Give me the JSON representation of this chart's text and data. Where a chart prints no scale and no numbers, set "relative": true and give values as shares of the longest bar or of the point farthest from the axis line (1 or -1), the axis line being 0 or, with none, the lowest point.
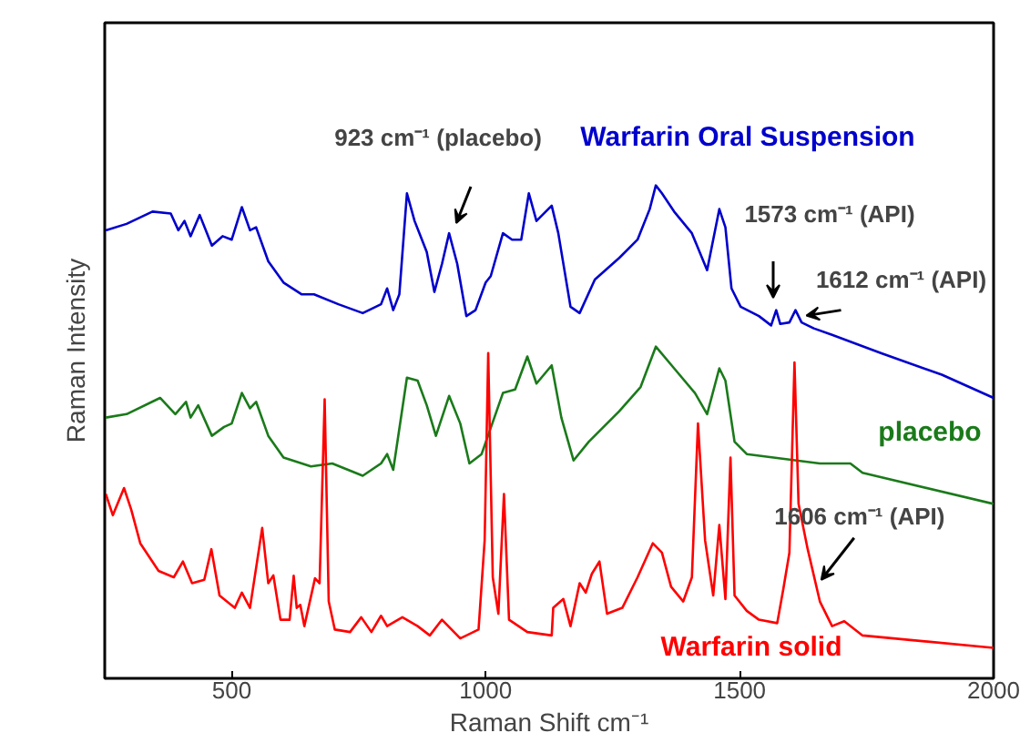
{
  "chart_data": {
    "type": "line",
    "xlabel": "Raman Shift cm⁻¹",
    "ylabel": "Raman Intensity",
    "relative": true,
    "xlim": [
      250,
      2000
    ],
    "xticks": [
      500,
      1000,
      1500,
      2000
    ],
    "annotations": [
      "923 cm⁻¹ (placebo)",
      "1573 cm⁻¹ (API)",
      {
        "text": "1612 cm⁻¹ (API)",
        "x": 1610,
        "y": 0.747
      },
      {
        "text": "1606 cm⁻¹ (API)",
        "x": 1650,
        "y": 0.2
      }
    ],
    "series": [
      {
        "name": "Warfarin Oral Suspension",
        "color": "#0000cc",
        "x": [
          252,
          293,
          344,
          380,
          395,
          407,
          419,
          437,
          461,
          482,
          500,
          520,
          536,
          548,
          572,
          602,
          638,
          662,
          710,
          758,
          794,
          806,
          818,
          830,
          845,
          860,
          884,
          899,
          914,
          928,
          944,
          962,
          980,
          1000,
          1010,
          1034,
          1052,
          1070,
          1085,
          1100,
          1130,
          1143,
          1167,
          1185,
          1215,
          1263,
          1299,
          1323,
          1335,
          1347,
          1371,
          1406,
          1436,
          1460,
          1472,
          1484,
          1502,
          1538,
          1562,
          1572,
          1580,
          1598,
          1610,
          1622,
          1646,
          1682,
          1778,
          1898,
          2000
        ],
        "values": [
          0.909,
          0.922,
          0.947,
          0.943,
          0.909,
          0.928,
          0.897,
          0.94,
          0.878,
          0.897,
          0.89,
          0.956,
          0.909,
          0.915,
          0.846,
          0.803,
          0.779,
          0.779,
          0.759,
          0.741,
          0.759,
          0.791,
          0.747,
          0.779,
          0.984,
          0.928,
          0.865,
          0.784,
          0.841,
          0.903,
          0.841,
          0.735,
          0.747,
          0.803,
          0.816,
          0.903,
          0.89,
          0.89,
          0.984,
          0.928,
          0.959,
          0.903,
          0.754,
          0.741,
          0.809,
          0.853,
          0.89,
          0.952,
          1.0,
          0.984,
          0.947,
          0.903,
          0.828,
          0.952,
          0.915,
          0.791,
          0.754,
          0.735,
          0.716,
          0.747,
          0.719,
          0.722,
          0.747,
          0.722,
          0.71,
          0.697,
          0.66,
          0.616,
          0.569
        ]
      },
      {
        "name": "placebo",
        "color": "#1a7a1a",
        "x": [
          252,
          293,
          359,
          389,
          410,
          419,
          434,
          461,
          485,
          500,
          520,
          536,
          548,
          572,
          602,
          656,
          698,
          758,
          794,
          806,
          818,
          845,
          866,
          884,
          902,
          928,
          950,
          968,
          992,
          1034,
          1058,
          1082,
          1100,
          1130,
          1149,
          1173,
          1203,
          1263,
          1305,
          1335,
          1371,
          1412,
          1436,
          1460,
          1472,
          1490,
          1514,
          1658,
          1718,
          1742,
          2000
        ],
        "values": [
          0.529,
          0.536,
          0.569,
          0.536,
          0.561,
          0.529,
          0.554,
          0.492,
          0.51,
          0.517,
          0.579,
          0.548,
          0.561,
          0.492,
          0.448,
          0.43,
          0.436,
          0.411,
          0.436,
          0.455,
          0.423,
          0.61,
          0.604,
          0.554,
          0.492,
          0.573,
          0.517,
          0.436,
          0.455,
          0.579,
          0.586,
          0.653,
          0.598,
          0.635,
          0.529,
          0.442,
          0.48,
          0.542,
          0.591,
          0.673,
          0.629,
          0.579,
          0.536,
          0.629,
          0.604,
          0.48,
          0.455,
          0.436,
          0.436,
          0.417,
          0.354
        ]
      },
      {
        "name": "Warfarin solid",
        "color": "#ff0000",
        "x": [
          252,
          266,
          288,
          302,
          320,
          356,
          386,
          404,
          422,
          446,
          460,
          476,
          506,
          520,
          536,
          560,
          572,
          582,
          596,
          614,
          622,
          628,
          635,
          643,
          664,
          673,
          683,
          691,
          703,
          733,
          755,
          775,
          794,
          806,
          836,
          866,
          890,
          914,
          950,
          986,
          998,
          1005,
          1014,
          1025,
          1036,
          1046,
          1082,
          1130,
          1133,
          1153,
          1167,
          1185,
          1197,
          1209,
          1224,
          1239,
          1269,
          1299,
          1329,
          1347,
          1365,
          1389,
          1406,
          1418,
          1432,
          1448,
          1460,
          1472,
          1482,
          1490,
          1514,
          1538,
          1574,
          1586,
          1598,
          1608,
          1616,
          1634,
          1658,
          1682,
          1706,
          1742,
          2000
        ],
        "values": [
          0.374,
          0.331,
          0.386,
          0.343,
          0.274,
          0.218,
          0.205,
          0.237,
          0.193,
          0.2,
          0.262,
          0.168,
          0.143,
          0.174,
          0.143,
          0.305,
          0.193,
          0.209,
          0.119,
          0.119,
          0.208,
          0.143,
          0.149,
          0.106,
          0.203,
          0.193,
          0.566,
          0.156,
          0.099,
          0.094,
          0.124,
          0.094,
          0.127,
          0.106,
          0.124,
          0.106,
          0.087,
          0.119,
          0.081,
          0.099,
          0.28,
          0.66,
          0.205,
          0.131,
          0.374,
          0.119,
          0.094,
          0.087,
          0.143,
          0.161,
          0.106,
          0.193,
          0.174,
          0.212,
          0.237,
          0.131,
          0.143,
          0.205,
          0.274,
          0.255,
          0.186,
          0.156,
          0.205,
          0.517,
          0.28,
          0.168,
          0.311,
          0.161,
          0.448,
          0.168,
          0.137,
          0.119,
          0.112,
          0.181,
          0.255,
          0.641,
          0.354,
          0.262,
          0.156,
          0.106,
          0.116,
          0.087,
          0.062
        ]
      }
    ]
  }
}
